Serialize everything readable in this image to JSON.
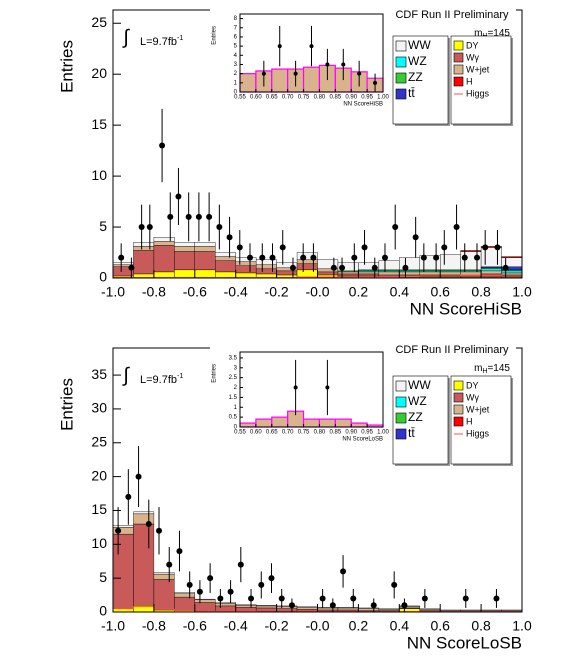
{
  "chart_data": [
    {
      "type": "histogram",
      "header": "CDF Run II Preliminary",
      "mass_label": {
        "m": "m",
        "sub": "H",
        "rest": "=145"
      },
      "lumi": {
        "integral": "∫",
        "text": "L=9.7fb",
        "sup": "-1"
      },
      "xlabel": "NN ScoreHiSB",
      "ylabel": "Entries",
      "xlim": [
        -1,
        1
      ],
      "ylim": [
        0,
        26.3
      ],
      "xticks": [
        {
          "value": -1,
          "label": "-1.0"
        },
        -0.8,
        -0.6,
        -0.4,
        -0.2,
        {
          "value": 0,
          "label": "-0.0"
        },
        0.2,
        0.4,
        0.6,
        0.8,
        {
          "value": 1,
          "label": "1.0"
        }
      ],
      "yticks": [
        0,
        5,
        10,
        15,
        20,
        25
      ],
      "bins": [
        -1,
        -0.9,
        -0.8,
        -0.7,
        -0.6,
        -0.5,
        -0.4,
        -0.3,
        -0.2,
        -0.1,
        0,
        0.1,
        0.2,
        0.3,
        0.4,
        0.5,
        0.6,
        0.7,
        0.8,
        0.9,
        1
      ],
      "series": [
        {
          "name": "DY",
          "color": "#ffff00",
          "values": [
            0.2,
            0.4,
            0.6,
            0.8,
            0.8,
            0.6,
            0.5,
            0.4,
            0.3,
            0.8,
            0.3,
            0.2,
            0.2,
            0.1,
            0.1,
            0.1,
            0.1,
            0.1,
            0.1,
            0.1
          ]
        },
        {
          "name": "Wγ",
          "color": "#c85a5a",
          "values": [
            0.9,
            2.3,
            2.6,
            1.8,
            1.8,
            1.1,
            0.7,
            0.5,
            0.4,
            0.6,
            0.3,
            0.2,
            0.2,
            0.2,
            0.2,
            0.2,
            0.2,
            0.2,
            0.3,
            0.2
          ]
        },
        {
          "name": "W+jet",
          "color": "#d9b38c",
          "values": [
            0.2,
            0.4,
            0.4,
            0.5,
            0.5,
            0.4,
            0.4,
            0.4,
            0.3,
            0.4,
            0.3,
            0.2,
            0.2,
            0.3,
            0.3,
            0.3,
            0.3,
            0.3,
            0.3,
            0.2
          ]
        },
        {
          "name": "WZ",
          "color": "#00ffff",
          "values": [
            0,
            0,
            0,
            0,
            0,
            0,
            0,
            0,
            0,
            0,
            0,
            0,
            0.1,
            0.1,
            0.1,
            0.1,
            0.1,
            0.1,
            0.2,
            0.2
          ]
        },
        {
          "name": "ZZ",
          "color": "#33cc33",
          "values": [
            0,
            0,
            0,
            0,
            0,
            0,
            0,
            0,
            0,
            0,
            0,
            0.1,
            0.1,
            0.1,
            0.1,
            0.1,
            0.1,
            0.1,
            0.1,
            0.1
          ]
        },
        {
          "name": "tt̄",
          "color": "#3333cc",
          "values": [
            0,
            0,
            0,
            0,
            0,
            0,
            0,
            0,
            0,
            0,
            0,
            0,
            0,
            0,
            0,
            0,
            0,
            0,
            0.1,
            0.3
          ]
        },
        {
          "name": "WW",
          "color": "#f4f4f4",
          "values": [
            0.2,
            0.4,
            0.4,
            0.4,
            0.4,
            0.4,
            0.4,
            0.5,
            0.5,
            0.7,
            0.9,
            0.8,
            0.7,
            0.9,
            1.2,
            1.4,
            1.5,
            1.8,
            1.9,
            0.9
          ]
        },
        {
          "name": "H",
          "color": "#ff0000",
          "values": [
            0,
            0,
            0,
            0,
            0,
            0,
            0,
            0,
            0,
            0,
            0,
            0,
            0,
            0,
            0,
            0,
            0,
            0.1,
            0.1,
            0.1
          ]
        }
      ],
      "signal": {
        "name": "Higgs",
        "color": "#ff5050",
        "values": [
          0.05,
          0.05,
          0.05,
          0.05,
          0.05,
          0.05,
          0.05,
          0.05,
          0.05,
          0.1,
          0.1,
          0.1,
          0.1,
          0.1,
          0.15,
          0.2,
          0.2,
          0.3,
          0.3,
          0.2
        ]
      },
      "data": {
        "x": [
          -0.96,
          -0.91,
          -0.86,
          -0.82,
          -0.76,
          -0.72,
          -0.68,
          -0.63,
          -0.58,
          -0.53,
          -0.48,
          -0.43,
          -0.38,
          -0.33,
          -0.27,
          -0.22,
          -0.17,
          -0.12,
          -0.07,
          -0.02,
          0.08,
          0.12,
          0.18,
          0.23,
          0.28,
          0.33,
          0.38,
          0.43,
          0.48,
          0.52,
          0.58,
          0.62,
          0.68,
          0.72,
          0.78,
          0.82,
          0.88,
          0.92
        ],
        "values": [
          2,
          1,
          5,
          5,
          13,
          6,
          8,
          6,
          6,
          6,
          5,
          4,
          3,
          2,
          2,
          2,
          3,
          1,
          2,
          2,
          1,
          1,
          2,
          3,
          1,
          2,
          5,
          1,
          4,
          2,
          2,
          3,
          5,
          2,
          2,
          3,
          3,
          1
        ],
        "errors": [
          1.4,
          1,
          2.2,
          2.2,
          3.6,
          2.4,
          2.8,
          2.4,
          2.4,
          2.4,
          2.2,
          2,
          1.7,
          1.4,
          1.4,
          1.4,
          1.7,
          1,
          1.4,
          1.4,
          1,
          1,
          1.4,
          1.7,
          1,
          1.4,
          2.2,
          1,
          2,
          1.4,
          1.4,
          1.7,
          2.2,
          1.4,
          1.4,
          1.7,
          1.7,
          1
        ]
      },
      "inset": {
        "xlabel": "NN ScoreHiSB",
        "ylabel": "Entries",
        "xlim": [
          0.55,
          1
        ],
        "ylim": [
          0,
          8.5
        ],
        "xticks": [
          0.55,
          {
            "value": 0.6,
            "label": "0.60"
          },
          0.65,
          {
            "value": 0.7,
            "label": "0.70"
          },
          0.75,
          {
            "value": 0.8,
            "label": "0.80"
          },
          0.85,
          {
            "value": 0.9,
            "label": "0.90"
          },
          0.95,
          {
            "value": 1,
            "label": "1.00"
          }
        ],
        "yticks": [
          0,
          1,
          2,
          3,
          4,
          5,
          6,
          7,
          8
        ],
        "bins": [
          0.55,
          0.6,
          0.65,
          0.7,
          0.75,
          0.8,
          0.85,
          0.9,
          0.95,
          1
        ],
        "values": [
          2,
          2.3,
          2.5,
          2.5,
          2.7,
          2.9,
          2.6,
          2.2,
          1.5
        ],
        "data": {
          "x": [
            0.625,
            0.675,
            0.725,
            0.775,
            0.825,
            0.875,
            0.925,
            0.975
          ],
          "values": [
            2,
            5,
            2,
            5,
            3,
            3,
            2,
            1
          ],
          "errors": [
            1.4,
            2.2,
            1.4,
            2.2,
            1.7,
            1.7,
            1.4,
            1
          ]
        }
      }
    },
    {
      "type": "histogram",
      "header": "CDF Run II Preliminary",
      "mass_label": {
        "m": "m",
        "sub": "H",
        "rest": "=145"
      },
      "lumi": {
        "integral": "∫",
        "text": "L=9.7fb",
        "sup": "-1"
      },
      "xlabel": "NN ScoreLoSB",
      "ylabel": "Entries",
      "xlim": [
        -1,
        1
      ],
      "ylim": [
        0,
        39
      ],
      "xticks": [
        {
          "value": -1,
          "label": "-1.0"
        },
        -0.8,
        -0.6,
        -0.4,
        -0.2,
        {
          "value": 0,
          "label": "-0.0"
        },
        0.2,
        0.4,
        0.6,
        0.8,
        {
          "value": 1,
          "label": "1.0"
        }
      ],
      "yticks": [
        0,
        5,
        10,
        15,
        20,
        25,
        30,
        35
      ],
      "bins": [
        -1,
        -0.9,
        -0.8,
        -0.7,
        -0.6,
        -0.5,
        -0.4,
        -0.3,
        -0.2,
        -0.1,
        0,
        0.1,
        0.2,
        0.3,
        0.4,
        0.5,
        0.6,
        0.7,
        0.8,
        0.9,
        1
      ],
      "series": [
        {
          "name": "DY",
          "color": "#ffff00",
          "values": [
            0.5,
            1,
            0.3,
            0.2,
            0.1,
            0.1,
            0.1,
            0.1,
            0.1,
            0.1,
            0.1,
            0.1,
            0.1,
            0.1,
            0.5,
            0.1,
            0,
            0,
            0,
            0
          ]
        },
        {
          "name": "Wγ",
          "color": "#c85a5a",
          "values": [
            11,
            12,
            4.5,
            2,
            1.3,
            0.8,
            0.6,
            0.5,
            0.4,
            0.3,
            0.2,
            0.2,
            0.1,
            0.1,
            0.1,
            0.1,
            0.1,
            0.1,
            0.1,
            0.1
          ]
        },
        {
          "name": "W+jet",
          "color": "#d9b38c",
          "values": [
            1,
            1.5,
            0.8,
            0.5,
            0.4,
            0.4,
            0.3,
            0.3,
            0.3,
            0.3,
            0.3,
            0.3,
            0.3,
            0.2,
            0.2,
            0.2,
            0.1,
            0.1,
            0.1,
            0.1
          ]
        },
        {
          "name": "WZ",
          "color": "#00ffff",
          "values": [
            0,
            0,
            0,
            0,
            0,
            0,
            0,
            0,
            0,
            0,
            0,
            0,
            0,
            0,
            0,
            0,
            0,
            0,
            0,
            0
          ]
        },
        {
          "name": "ZZ",
          "color": "#33cc33",
          "values": [
            0,
            0,
            0,
            0,
            0,
            0,
            0,
            0,
            0,
            0,
            0,
            0,
            0,
            0,
            0,
            0,
            0,
            0,
            0,
            0
          ]
        },
        {
          "name": "tt̄",
          "color": "#3333cc",
          "values": [
            0,
            0,
            0,
            0,
            0,
            0,
            0,
            0,
            0,
            0,
            0,
            0,
            0,
            0,
            0,
            0,
            0,
            0,
            0,
            0
          ]
        },
        {
          "name": "WW",
          "color": "#f4f4f4",
          "values": [
            0.3,
            0.3,
            0.2,
            0.2,
            0.1,
            0.1,
            0.1,
            0.1,
            0.1,
            0.1,
            0.1,
            0.1,
            0.1,
            0.1,
            0.1,
            0.1,
            0.1,
            0.1,
            0.1,
            0.1
          ]
        },
        {
          "name": "H",
          "color": "#ff0000",
          "values": [
            0,
            0,
            0,
            0,
            0,
            0,
            0,
            0,
            0,
            0,
            0,
            0,
            0,
            0,
            0,
            0,
            0,
            0,
            0,
            0
          ]
        }
      ],
      "signal": {
        "name": "Higgs",
        "color": "#ff5050",
        "values": [
          0.5,
          0.8,
          0.4,
          0.2,
          0.1,
          0.1,
          0.1,
          0.05,
          0.05,
          0.05,
          0.05,
          0.05,
          0.05,
          0.05,
          0.05,
          0.05,
          0.05,
          0.05,
          0.05,
          0.05
        ]
      },
      "data": {
        "x": [
          -0.975,
          -0.925,
          -0.875,
          -0.825,
          -0.775,
          -0.725,
          -0.675,
          -0.625,
          -0.575,
          -0.525,
          -0.475,
          -0.425,
          -0.375,
          -0.325,
          -0.275,
          -0.225,
          -0.175,
          -0.125,
          0.025,
          0.075,
          0.125,
          0.175,
          0.275,
          0.375,
          0.425,
          0.525,
          0.725,
          0.875
        ],
        "values": [
          12,
          17,
          20,
          13,
          12,
          7,
          9,
          4,
          3,
          5,
          2,
          3,
          7,
          2,
          4,
          5,
          2,
          1,
          2,
          1,
          6,
          2,
          1,
          4,
          1,
          2,
          2,
          2
        ],
        "errors": [
          3.5,
          4.1,
          4.5,
          3.6,
          3.5,
          2.6,
          3,
          2,
          1.7,
          2.2,
          1.4,
          1.7,
          2.6,
          1.4,
          2,
          2.2,
          1.4,
          1,
          1.4,
          1,
          2.4,
          1.4,
          1,
          2,
          1,
          1.4,
          1.4,
          1.4
        ]
      },
      "inset": {
        "xlabel": "NN ScoreLoSB",
        "ylabel": "Entries",
        "xlim": [
          0.55,
          1
        ],
        "ylim": [
          0,
          3.8
        ],
        "xticks": [
          0.55,
          {
            "value": 0.6,
            "label": "0.60"
          },
          0.65,
          {
            "value": 0.7,
            "label": "0.70"
          },
          0.75,
          {
            "value": 0.8,
            "label": "0.80"
          },
          0.85,
          {
            "value": 0.9,
            "label": "0.90"
          },
          0.95,
          {
            "value": 1,
            "label": "1.00"
          }
        ],
        "yticks": [
          0,
          0.5,
          1,
          1.5,
          2,
          2.5,
          3,
          3.5
        ],
        "bins": [
          0.55,
          0.6,
          0.65,
          0.7,
          0.75,
          0.8,
          0.85,
          0.9,
          0.95,
          1
        ],
        "values": [
          0.2,
          0.4,
          0.5,
          0.8,
          0.4,
          0.4,
          0.4,
          0.2,
          0.1
        ],
        "data": {
          "x": [
            0.725,
            0.825
          ],
          "values": [
            2,
            2
          ],
          "errors": [
            1.4,
            1.4
          ]
        }
      }
    }
  ]
}
